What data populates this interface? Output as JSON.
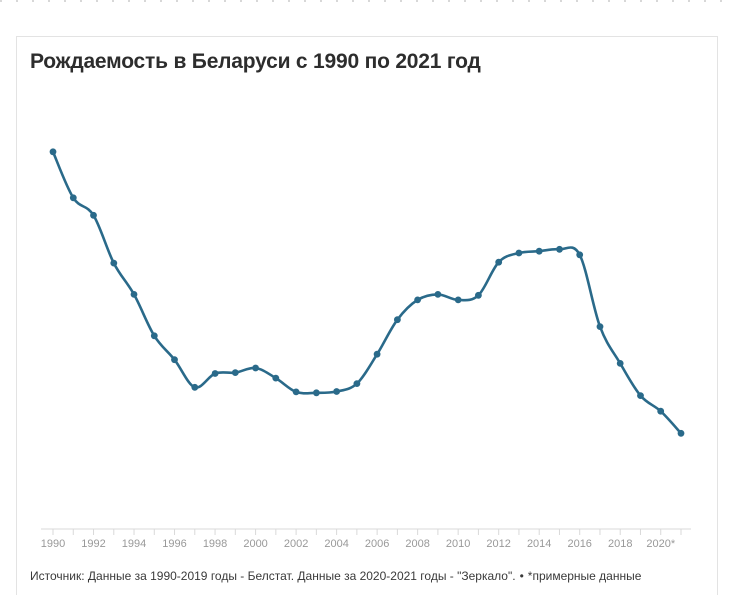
{
  "top_rule_color": "#bdbdbd",
  "chart_data": {
    "type": "line",
    "title": "Рождаемость в Беларуси с 1990 по 2021 год",
    "xlabel": "",
    "ylabel": "",
    "x": [
      1990,
      1991,
      1992,
      1993,
      1994,
      1995,
      1996,
      1997,
      1998,
      1999,
      2000,
      2001,
      2002,
      2003,
      2004,
      2005,
      2006,
      2007,
      2008,
      2009,
      2010,
      2011,
      2012,
      2013,
      2014,
      2015,
      2016,
      2017,
      2018,
      2019,
      2020,
      2021
    ],
    "x_tick_labels": [
      "1990",
      "1992",
      "1994",
      "1996",
      "1998",
      "2000",
      "2002",
      "2004",
      "2006",
      "2008",
      "2010",
      "2012",
      "2014",
      "2016",
      "2018",
      "2020*"
    ],
    "x_tick_values": [
      1990,
      1992,
      1994,
      1996,
      1998,
      2000,
      2002,
      2004,
      2006,
      2008,
      2010,
      2012,
      2014,
      2016,
      2018,
      2020
    ],
    "xlim": [
      1990,
      2021
    ],
    "y_ticks_shown": false,
    "values_note": "relative values read from plot, y-axis unlabeled",
    "series": [
      {
        "values": [
          142.0,
          132.0,
          128.2,
          117.8,
          111.0,
          102.0,
          96.8,
          90.8,
          93.8,
          94.0,
          95.0,
          92.8,
          89.8,
          89.6,
          89.9,
          91.6,
          98.0,
          105.5,
          109.8,
          111.0,
          109.8,
          110.8,
          118.0,
          120.0,
          120.4,
          120.8,
          119.6,
          104.0,
          96.0,
          89.0,
          85.6,
          80.8
        ],
        "color": "#2a6a8a"
      }
    ],
    "ylim": [
      60,
      150
    ],
    "grid": false,
    "legend": "none"
  },
  "source": {
    "text": "Источник: Данные за 1990-2019 годы - Белстат. Данные за 2020-2021 годы - \"Зеркало\".",
    "separator": "•",
    "note": "*примерные данные"
  }
}
